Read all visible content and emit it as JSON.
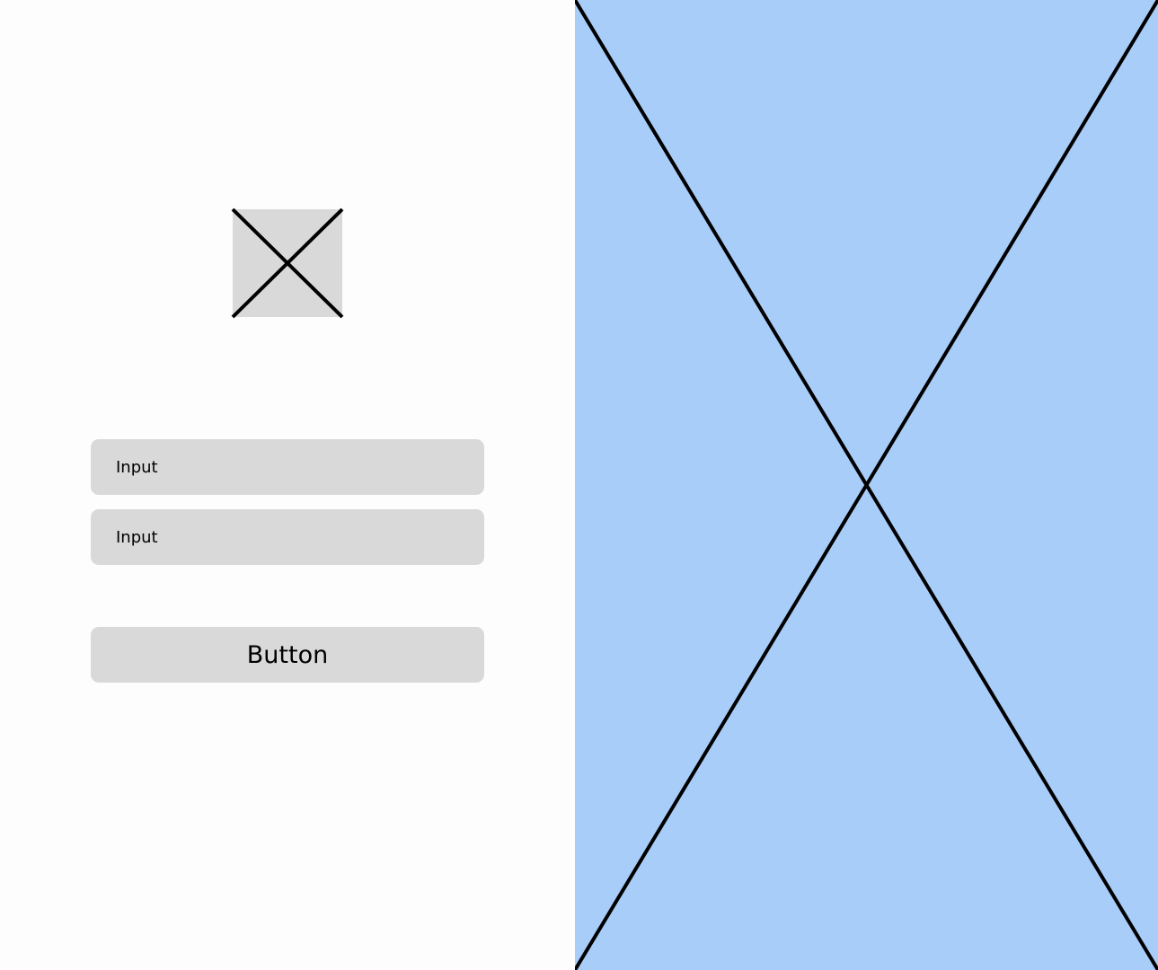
{
  "form": {
    "logo_icon": "image-placeholder-icon",
    "input_1_placeholder": "Input",
    "input_2_placeholder": "Input",
    "button_label": "Button"
  },
  "hero": {
    "icon": "image-placeholder-icon"
  },
  "colors": {
    "placeholder_fill": "#d9d9d9",
    "hero_fill": "#a8cdf8",
    "stroke": "#000000",
    "background": "#fdfdfd"
  }
}
